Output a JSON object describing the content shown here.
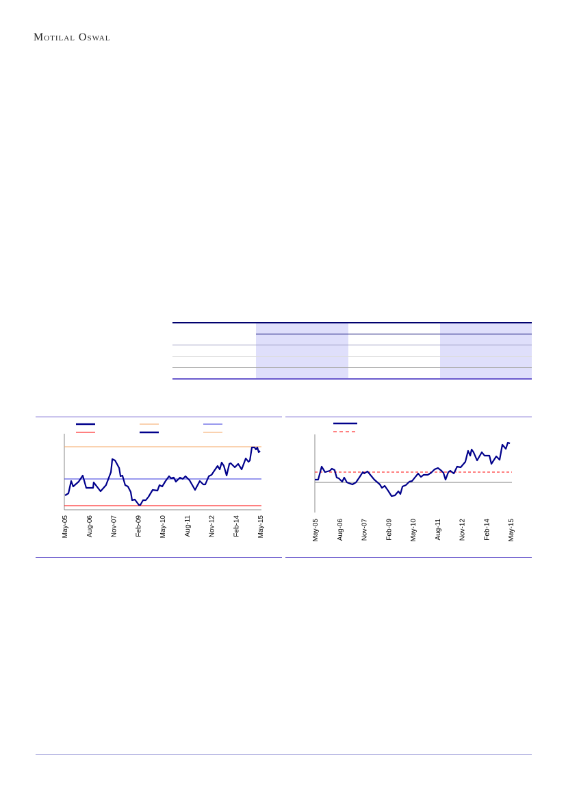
{
  "header": {
    "logo_text": "Motilal Oswal"
  },
  "colors": {
    "navy": "#00008b",
    "orange": "#f4a460",
    "blue": "#3333dd",
    "red": "#ff0000",
    "frame": "#6a5acd",
    "table_shade": "#dfdffb"
  },
  "chart_data": [
    {
      "type": "line",
      "xlim": [
        2005.33,
        2015.33
      ],
      "ylim": [
        0,
        111
      ],
      "x_tick_labels": [
        "May-05",
        "Aug-06",
        "Nov-07",
        "Feb-09",
        "May-10",
        "Aug-11",
        "Nov-12",
        "Feb-14",
        "May-15"
      ],
      "grid": false,
      "legend": "top",
      "reference_lines": [
        {
          "value": 92,
          "color": "#f4a460"
        },
        {
          "value": 45,
          "color": "#3333dd"
        },
        {
          "value": 6,
          "color": "#ff0000"
        }
      ],
      "series": [
        {
          "color": "#00008b",
          "x": [
            2005.37,
            2005.54,
            2005.68,
            2005.78,
            2006.06,
            2006.27,
            2006.45,
            2006.8,
            2006.83,
            2007.18,
            2007.46,
            2007.71,
            2007.78,
            2007.92,
            2008.13,
            2008.2,
            2008.3,
            2008.44,
            2008.58,
            2008.72,
            2008.79,
            2008.93,
            2009.14,
            2009.21,
            2009.35,
            2009.49,
            2009.63,
            2009.84,
            2010.09,
            2010.19,
            2010.33,
            2010.5,
            2010.68,
            2010.78,
            2010.92,
            2011.03,
            2011.24,
            2011.38,
            2011.52,
            2011.73,
            2012.01,
            2012.25,
            2012.43,
            2012.53,
            2012.71,
            2012.85,
            2012.99,
            2013.16,
            2013.27,
            2013.37,
            2013.48,
            2013.62,
            2013.76,
            2013.83,
            2014.04,
            2014.21,
            2014.39,
            2014.6,
            2014.74,
            2014.81,
            2014.91,
            2015.05,
            2015.12,
            2015.19,
            2015.26,
            2015.33
          ],
          "y": [
            21,
            24,
            42,
            34,
            41,
            50,
            32,
            32,
            40,
            27,
            36,
            55,
            74,
            72,
            61,
            49,
            50,
            36,
            34,
            26,
            14,
            15,
            7,
            7,
            14,
            14,
            19,
            29,
            28,
            36,
            34,
            42,
            49,
            46,
            47,
            41,
            47,
            45,
            49,
            43,
            29,
            42,
            37,
            37,
            49,
            51,
            57,
            64,
            59,
            69,
            64,
            50,
            67,
            68,
            62,
            67,
            59,
            75,
            70,
            72,
            91,
            91,
            88,
            91,
            84,
            86
          ]
        }
      ],
      "legend_entries": [
        {
          "color": "#00008b",
          "style": "thick"
        },
        {
          "color": "#f4a460",
          "style": "thin"
        },
        {
          "color": "#3333dd",
          "style": "thin"
        },
        {
          "color": "#ff0000",
          "style": "thin"
        },
        {
          "color": "#00008b",
          "style": "thick"
        },
        {
          "color": "#f4a460",
          "style": "thin"
        }
      ]
    },
    {
      "type": "line",
      "xlim": [
        2005.33,
        2015.33
      ],
      "ylim": [
        -44,
        70
      ],
      "x_tick_labels": [
        "May-05",
        "Aug-06",
        "Nov-07",
        "Feb-09",
        "May-10",
        "Aug-11",
        "Nov-12",
        "Feb-14",
        "May-15"
      ],
      "grid": false,
      "legend": "top",
      "reference_lines": [
        {
          "value": 0,
          "color": "#808080",
          "style": "solid"
        },
        {
          "value": 15,
          "color": "#ff0000",
          "style": "dashed"
        }
      ],
      "series": [
        {
          "color": "#00008b",
          "x": [
            2005.33,
            2005.5,
            2005.68,
            2005.85,
            2006.1,
            2006.2,
            2006.34,
            2006.45,
            2006.55,
            2006.73,
            2006.83,
            2006.97,
            2007.25,
            2007.43,
            2007.6,
            2007.78,
            2007.85,
            2008.02,
            2008.37,
            2008.65,
            2008.76,
            2008.9,
            2009.07,
            2009.25,
            2009.42,
            2009.6,
            2009.7,
            2009.81,
            2009.98,
            2010.16,
            2010.3,
            2010.44,
            2010.61,
            2010.75,
            2010.89,
            2011.1,
            2011.27,
            2011.45,
            2011.62,
            2011.8,
            2011.9,
            2012.01,
            2012.15,
            2012.25,
            2012.43,
            2012.6,
            2012.78,
            2013.02,
            2013.16,
            2013.27,
            2013.34,
            2013.44,
            2013.62,
            2013.86,
            2014.0,
            2014.25,
            2014.35,
            2014.6,
            2014.77,
            2014.91,
            2015.09,
            2015.19,
            2015.3
          ],
          "y": [
            4,
            4,
            23,
            15,
            17,
            20,
            18,
            7,
            6,
            1,
            7,
            0,
            -3,
            0,
            7,
            15,
            13,
            16,
            4,
            -3,
            -8,
            -5,
            -12,
            -20,
            -19,
            -13,
            -17,
            -6,
            -4,
            1,
            2,
            7,
            13,
            8,
            11,
            11,
            14,
            19,
            21,
            17,
            14,
            4,
            15,
            17,
            13,
            23,
            22,
            30,
            46,
            39,
            48,
            44,
            32,
            44,
            39,
            39,
            27,
            38,
            33,
            55,
            49,
            58,
            57
          ]
        }
      ],
      "legend_entries": [
        {
          "color": "#00008b",
          "style": "thick"
        },
        {
          "color": "#ff0000",
          "style": "dashed"
        }
      ]
    }
  ]
}
